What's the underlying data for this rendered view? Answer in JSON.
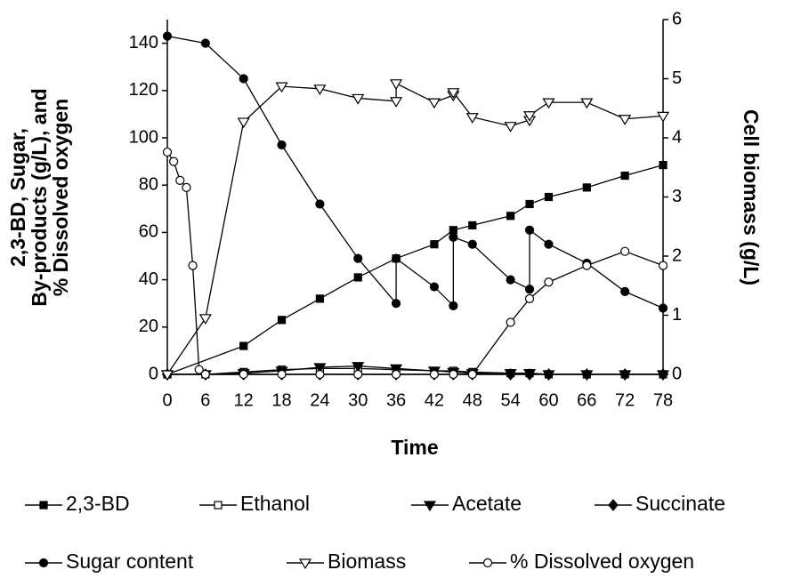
{
  "chart_data": {
    "type": "line",
    "x_label": "Time",
    "y_label": [
      "2,3-BD, Sugar,",
      "By-products (g/L), and",
      "% Dissolved oxygen"
    ],
    "y2_label": "Cell biomass (g/L)",
    "xlim": [
      0,
      78
    ],
    "xticks": [
      0,
      6,
      12,
      18,
      24,
      30,
      36,
      42,
      48,
      54,
      60,
      66,
      72,
      78
    ],
    "ylim": [
      0,
      150
    ],
    "yticks": [
      0,
      20,
      40,
      60,
      80,
      100,
      120,
      140
    ],
    "y2lim": [
      0,
      6
    ],
    "y2ticks": [
      0,
      1,
      2,
      3,
      4,
      5,
      6
    ],
    "series": [
      {
        "name": "2,3-BD",
        "color": "#000000",
        "marker": "square-filled",
        "x": [
          0,
          12,
          18,
          24,
          30,
          36,
          42,
          45,
          48,
          54,
          57,
          60,
          66,
          72,
          78
        ],
        "values": [
          0,
          12,
          23,
          32,
          41,
          49,
          55,
          61,
          63,
          67,
          72,
          75,
          79,
          84,
          88.5
        ]
      },
      {
        "name": "Ethanol",
        "color": "#000000",
        "marker": "square-open",
        "x": [
          0,
          6,
          12,
          18,
          24,
          30,
          36,
          42,
          45,
          48,
          54,
          57,
          60,
          66,
          72,
          78
        ],
        "values": [
          0,
          0,
          1,
          2,
          2.5,
          2.5,
          2,
          1.5,
          1.5,
          1,
          0.5,
          0.5,
          0,
          0,
          0,
          0
        ]
      },
      {
        "name": "Acetate",
        "color": "#000000",
        "marker": "triangle-filled",
        "x": [
          0,
          6,
          12,
          18,
          24,
          30,
          36,
          42,
          45,
          48,
          54,
          57,
          60,
          66,
          72,
          78
        ],
        "values": [
          0,
          0,
          0.5,
          1.5,
          3,
          3.5,
          2.5,
          1.5,
          1,
          0.5,
          0.5,
          0.5,
          0,
          0,
          0,
          0
        ]
      },
      {
        "name": "Succinate",
        "color": "#000000",
        "marker": "diamond-filled",
        "x": [
          0,
          6,
          12,
          18,
          24,
          30,
          36,
          42,
          45,
          48,
          54,
          57,
          60,
          66,
          72,
          78
        ],
        "values": [
          0,
          0,
          0,
          0,
          0,
          0,
          0,
          0,
          0,
          0,
          0,
          0,
          0,
          0,
          0,
          0
        ]
      },
      {
        "name": "Sugar content",
        "color": "#000000",
        "marker": "circle-filled",
        "x": [
          0,
          6,
          12,
          18,
          24,
          30,
          36,
          36,
          42,
          45,
          45,
          48,
          54,
          57,
          57,
          60,
          66,
          72,
          78
        ],
        "values": [
          143,
          140,
          125,
          97,
          72,
          49,
          30,
          49,
          37,
          29,
          58,
          55,
          40,
          36,
          61,
          55,
          47,
          35,
          28
        ]
      },
      {
        "name": "Biomass",
        "color": "#000000",
        "marker": "triangle-open",
        "axis": "y2",
        "x": [
          0,
          6,
          12,
          18,
          24,
          30,
          36,
          36,
          42,
          45,
          45,
          48,
          54,
          57,
          57,
          60,
          66,
          72,
          78
        ],
        "values": [
          0,
          0.95,
          4.27,
          4.87,
          4.83,
          4.67,
          4.62,
          4.92,
          4.6,
          4.72,
          4.77,
          4.35,
          4.2,
          4.3,
          4.38,
          4.6,
          4.6,
          4.32,
          4.37
        ]
      },
      {
        "name": "% Dissolved oxygen",
        "color": "#000000",
        "marker": "circle-open",
        "x": [
          0,
          1,
          2,
          3,
          4,
          5,
          6,
          12,
          18,
          24,
          30,
          36,
          42,
          45,
          48,
          54,
          57,
          60,
          66,
          72,
          78
        ],
        "values": [
          94,
          90,
          82,
          79,
          46,
          2,
          0,
          0,
          0,
          0,
          0,
          0,
          0,
          0,
          0,
          22,
          32,
          39,
          46,
          52,
          46
        ]
      }
    ]
  }
}
